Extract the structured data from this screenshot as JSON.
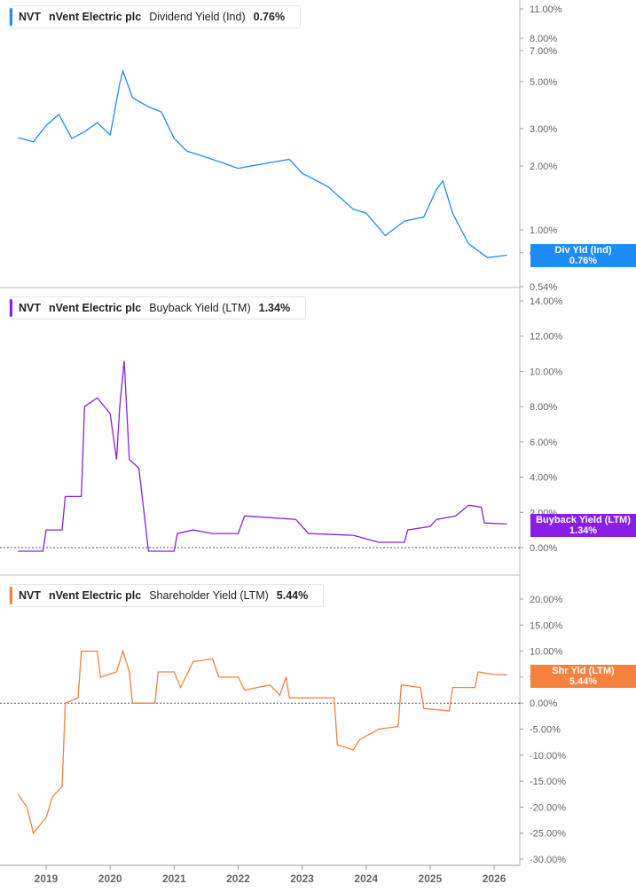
{
  "colors": {
    "dividend": "#1e8cf5",
    "buyback": "#8a1ee8",
    "shareholder": "#f5813c"
  },
  "chart_data": [
    {
      "type": "line",
      "ticker": "NVT",
      "company": "nVent Electric plc",
      "metric": "Dividend Yield (Ind)",
      "value_label": "0.76%",
      "tag_title": "Div Yld (Ind)",
      "tag_value": "0.76%",
      "yscale": "log",
      "ylim": [
        0.54,
        11
      ],
      "yticks": [
        "11.00%",
        "8.00%",
        "7.00%",
        "5.00%",
        "3.00%",
        "2.00%",
        "1.00%",
        "0.78%",
        "0.54%"
      ],
      "ytick_values": [
        11,
        8,
        7,
        5,
        3,
        2,
        1,
        0.78,
        0.54
      ],
      "x": [
        2018.56,
        2018.8,
        2019.0,
        2019.2,
        2019.4,
        2019.6,
        2019.8,
        2020.0,
        2020.15,
        2020.2,
        2020.35,
        2020.6,
        2020.8,
        2021.0,
        2021.2,
        2021.5,
        2021.8,
        2022.0,
        2022.4,
        2022.8,
        2023.0,
        2023.4,
        2023.8,
        2024.0,
        2024.3,
        2024.6,
        2024.9,
        2025.1,
        2025.2,
        2025.35,
        2025.6,
        2025.9,
        2026.2
      ],
      "y": [
        2.72,
        2.6,
        3.1,
        3.5,
        2.7,
        2.9,
        3.2,
        2.8,
        4.9,
        5.6,
        4.2,
        3.8,
        3.6,
        2.7,
        2.35,
        2.2,
        2.05,
        1.95,
        2.05,
        2.15,
        1.85,
        1.6,
        1.25,
        1.2,
        0.94,
        1.1,
        1.15,
        1.55,
        1.7,
        1.2,
        0.86,
        0.74,
        0.76
      ]
    },
    {
      "type": "line",
      "ticker": "NVT",
      "company": "nVent Electric plc",
      "metric": "Buyback Yield (LTM)",
      "value_label": "1.34%",
      "tag_title": "Buyback Yield (LTM)",
      "tag_value": "1.34%",
      "ylim": [
        -0.5,
        14
      ],
      "yticks": [
        "14.00%",
        "12.00%",
        "10.00%",
        "8.00%",
        "6.00%",
        "4.00%",
        "2.00%",
        "0.00%"
      ],
      "ytick_values": [
        14,
        12,
        10,
        8,
        6,
        4,
        2,
        0
      ],
      "x": [
        2018.56,
        2018.95,
        2019.0,
        2019.25,
        2019.3,
        2019.55,
        2019.6,
        2019.8,
        2020.0,
        2020.1,
        2020.15,
        2020.22,
        2020.3,
        2020.45,
        2020.6,
        2021.0,
        2021.05,
        2021.3,
        2021.6,
        2022.0,
        2022.1,
        2022.5,
        2022.9,
        2023.1,
        2023.8,
        2024.2,
        2024.6,
        2024.65,
        2025.0,
        2025.1,
        2025.4,
        2025.6,
        2025.8,
        2025.85,
        2026.2
      ],
      "y": [
        -0.2,
        -0.2,
        1.0,
        1.0,
        2.9,
        2.9,
        8.0,
        8.5,
        7.6,
        5.0,
        8.0,
        10.6,
        5.0,
        4.5,
        -0.2,
        -0.2,
        0.8,
        1.0,
        0.8,
        0.8,
        1.8,
        1.7,
        1.6,
        0.8,
        0.7,
        0.3,
        0.3,
        1.0,
        1.2,
        1.6,
        1.8,
        2.4,
        2.3,
        1.4,
        1.34
      ]
    },
    {
      "type": "line",
      "ticker": "NVT",
      "company": "nVent Electric plc",
      "metric": "Shareholder Yield (LTM)",
      "value_label": "5.44%",
      "tag_title": "Shr Yld (LTM)",
      "tag_value": "5.44%",
      "ylim": [
        -30,
        20
      ],
      "yticks": [
        "20.00%",
        "15.00%",
        "10.00%",
        "5.00%",
        "0.00%",
        "-5.00%",
        "-10.00%",
        "-15.00%",
        "-20.00%",
        "-25.00%",
        "-30.00%"
      ],
      "ytick_values": [
        20,
        15,
        10,
        5,
        0,
        -5,
        -10,
        -15,
        -20,
        -25,
        -30
      ],
      "x": [
        2018.56,
        2018.7,
        2018.8,
        2019.0,
        2019.1,
        2019.25,
        2019.3,
        2019.5,
        2019.55,
        2019.8,
        2019.85,
        2020.1,
        2020.2,
        2020.3,
        2020.35,
        2020.7,
        2020.75,
        2021.0,
        2021.1,
        2021.3,
        2021.6,
        2021.7,
        2022.0,
        2022.1,
        2022.5,
        2022.65,
        2022.75,
        2022.8,
        2023.5,
        2023.55,
        2023.8,
        2023.9,
        2024.2,
        2024.5,
        2024.55,
        2024.85,
        2024.9,
        2025.3,
        2025.35,
        2025.7,
        2025.75,
        2026.0,
        2026.2
      ],
      "y": [
        -17.5,
        -20,
        -25,
        -22,
        -18,
        -16,
        0,
        1,
        10,
        10,
        5,
        6,
        10,
        6,
        0,
        0,
        6,
        6,
        3,
        8,
        8.5,
        5,
        5,
        2.5,
        3.5,
        1.5,
        5,
        1,
        1,
        -8,
        -9,
        -7,
        -5,
        -4.5,
        3.5,
        3,
        -1,
        -1.5,
        3,
        3,
        6,
        5.5,
        5.44
      ]
    }
  ],
  "xaxis": {
    "ticks": [
      "2019",
      "2020",
      "2021",
      "2022",
      "2023",
      "2024",
      "2025",
      "2026"
    ],
    "tick_values": [
      2019,
      2020,
      2021,
      2022,
      2023,
      2024,
      2025,
      2026
    ]
  }
}
